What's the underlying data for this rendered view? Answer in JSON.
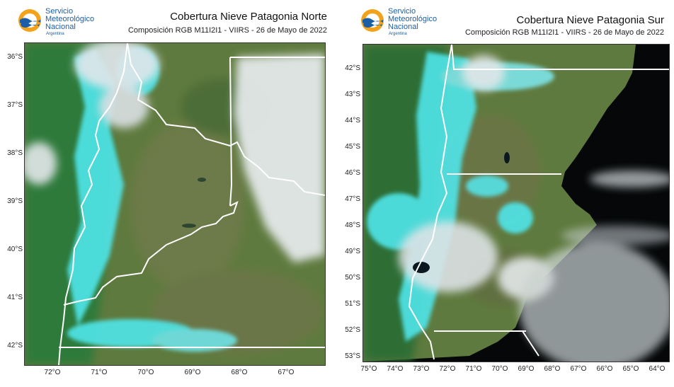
{
  "logo": {
    "line1": "Servicio",
    "line2": "Meteorológico",
    "line3": "Nacional",
    "line4": "Argentina"
  },
  "maps": [
    {
      "title": "Cobertura Nieve Patagonia Norte",
      "subtitle": "Composición RGB M11I2I1 - VIIRS - 26 de Mayo de 2022",
      "lat_labels": [
        "36°S",
        "37°S",
        "38°S",
        "39°S",
        "40°S",
        "41°S",
        "42°S"
      ],
      "lon_labels": [
        "72°O",
        "71°O",
        "70°O",
        "69°O",
        "68°O",
        "67°O"
      ]
    },
    {
      "title": "Cobertura Nieve Patagonia Sur",
      "subtitle": "Composición RGB M11I2I1 - VIIRS - 26 de Mayo de 2022",
      "lat_labels": [
        "42°S",
        "43°S",
        "44°S",
        "45°S",
        "46°S",
        "47°S",
        "48°S",
        "49°S",
        "50°S",
        "51°S",
        "52°S",
        "53°S"
      ],
      "lon_labels": [
        "75°O",
        "74°O",
        "73°O",
        "72°O",
        "71°O",
        "70°O",
        "69°O",
        "68°O",
        "67°O",
        "66°O",
        "65°O",
        "64°O"
      ]
    }
  ],
  "colors": {
    "land_green": "#5f7a3e",
    "forest_green": "#2f7a3a",
    "snow_cyan": "#4fe6ea",
    "cloud_white": "#e8ecef",
    "ocean_black": "#050708",
    "border_white": "#ffffff",
    "brand_blue": "#1b5ea8",
    "brand_orange": "#f2a31b"
  }
}
